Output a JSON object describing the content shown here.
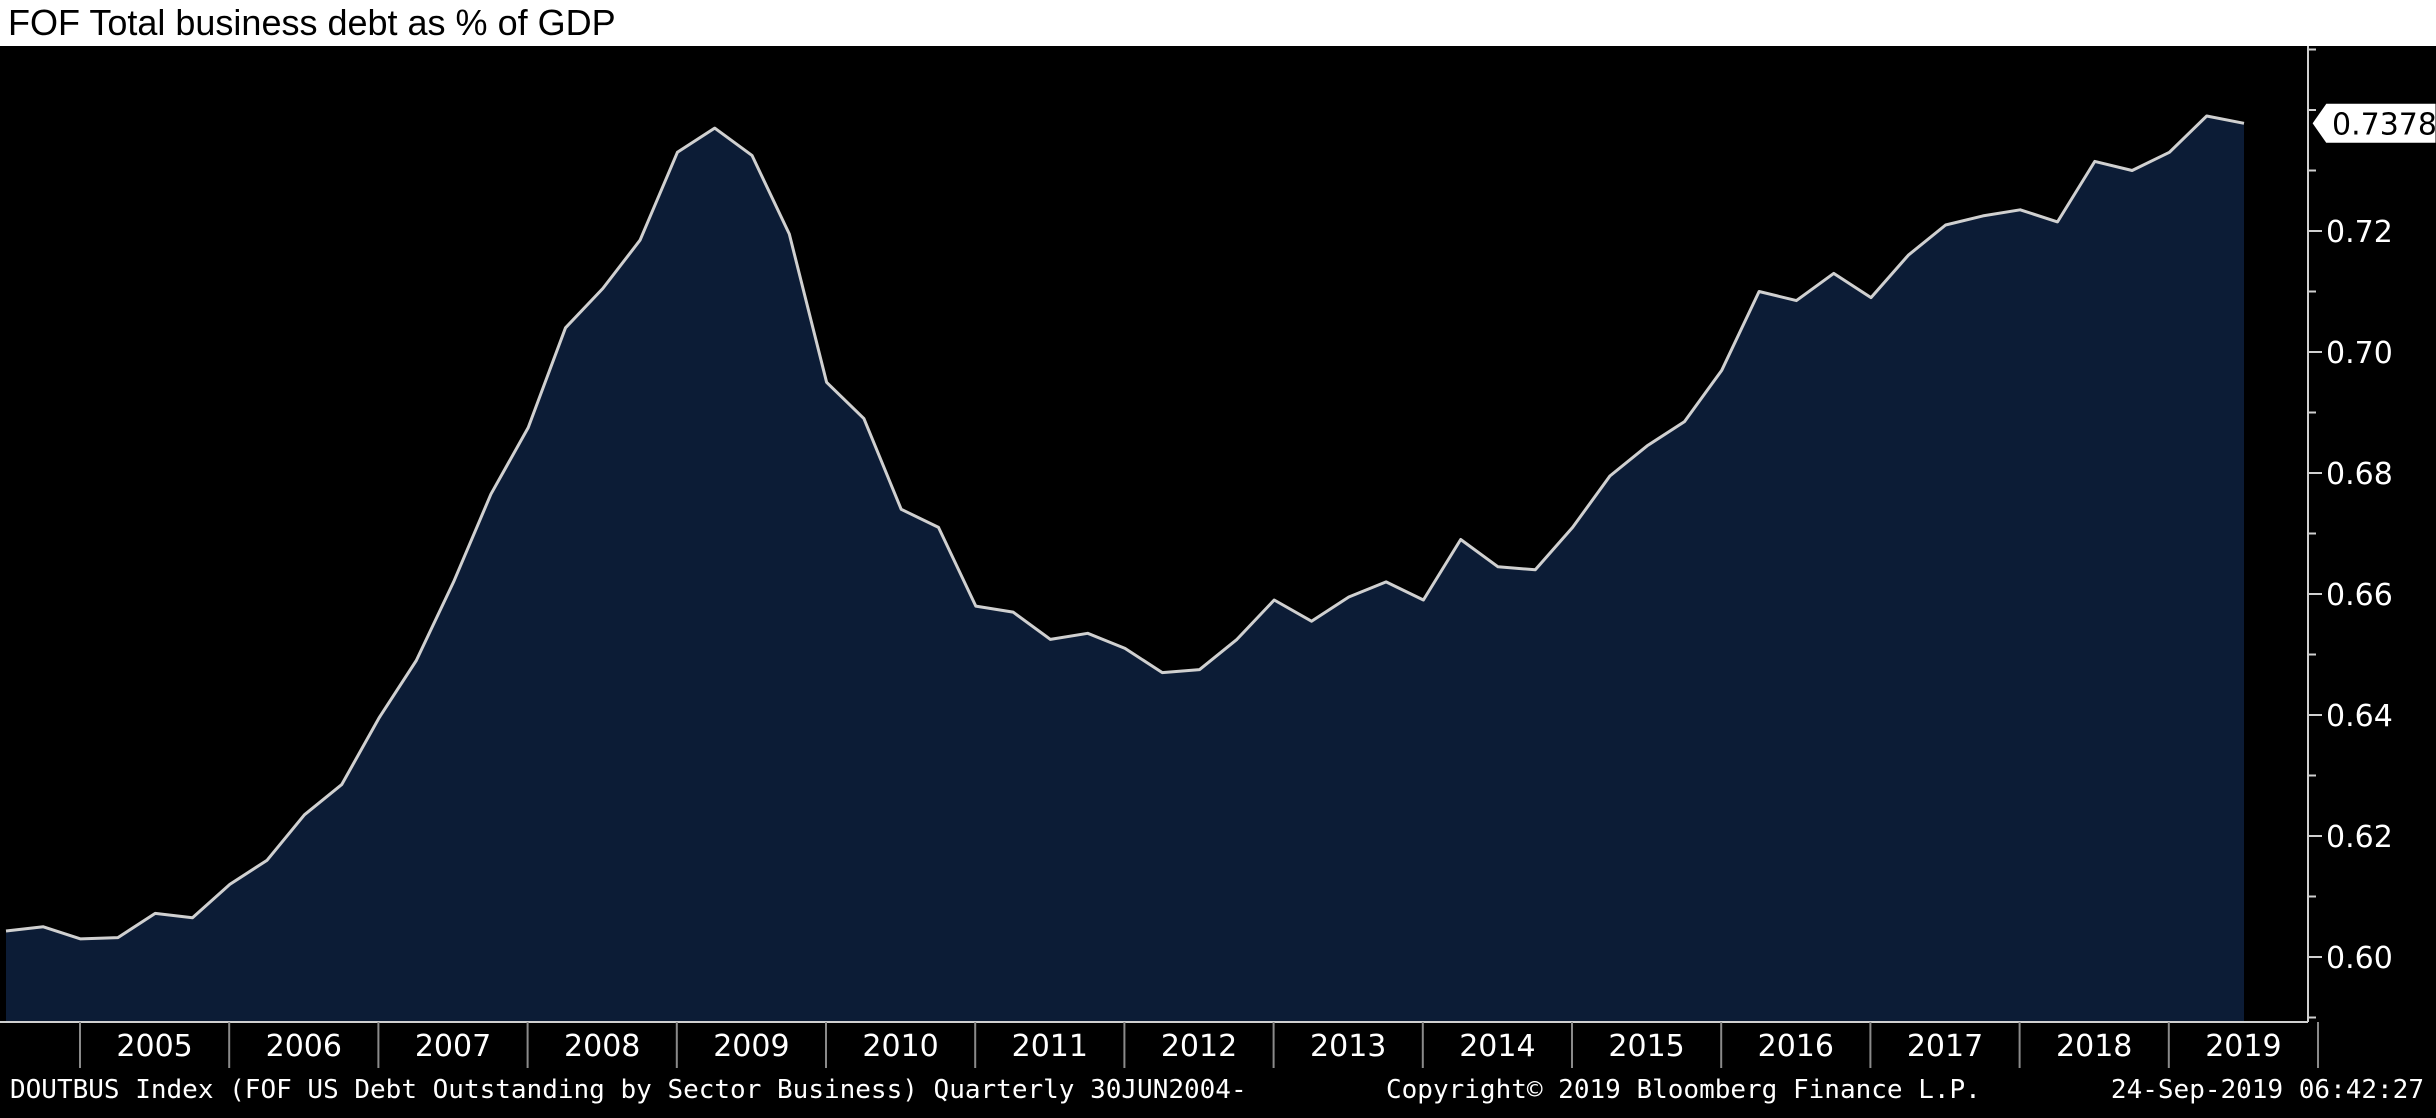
{
  "chart_data": {
    "type": "area",
    "title": "FOF Total business debt as % of GDP",
    "x_start": "2004 Q2",
    "frequency": "Quarterly",
    "values": [
      0.6043,
      0.605,
      0.603,
      0.6032,
      0.6072,
      0.6065,
      0.612,
      0.616,
      0.6235,
      0.6285,
      0.6395,
      0.649,
      0.662,
      0.6765,
      0.6875,
      0.704,
      0.7105,
      0.7185,
      0.733,
      0.737,
      0.7325,
      0.7195,
      0.695,
      0.689,
      0.674,
      0.671,
      0.658,
      0.657,
      0.6525,
      0.6535,
      0.651,
      0.647,
      0.6475,
      0.6525,
      0.659,
      0.6555,
      0.6595,
      0.662,
      0.659,
      0.669,
      0.6645,
      0.664,
      0.671,
      0.6795,
      0.6845,
      0.6885,
      0.697,
      0.71,
      0.7085,
      0.713,
      0.709,
      0.716,
      0.721,
      0.7225,
      0.7235,
      0.7215,
      0.7315,
      0.73,
      0.733,
      0.739,
      0.7378
    ],
    "last_value_label": "0.7378",
    "x_tick_labels": [
      "2005",
      "2006",
      "2007",
      "2008",
      "2009",
      "2010",
      "2011",
      "2012",
      "2013",
      "2014",
      "2015",
      "2016",
      "2017",
      "2018",
      "2019"
    ],
    "y_tick_labels": [
      "0.60",
      "0.62",
      "0.64",
      "0.66",
      "0.68",
      "0.70",
      "0.72"
    ],
    "y_ticks": [
      0.6,
      0.62,
      0.64,
      0.66,
      0.68,
      0.7,
      0.72
    ],
    "ylim": [
      0.59,
      0.75
    ],
    "xlabel": "",
    "ylabel": "",
    "grid": false,
    "colors": {
      "background": "#000000",
      "fill": "#0c1c36",
      "line": "#d0d0d0",
      "text": "#ffffff"
    }
  },
  "footer": {
    "series_description": "DOUTBUS Index (FOF US Debt Outstanding by Sector Business)  Quarterly 30JUN2004-",
    "copyright": "Copyright© 2019 Bloomberg Finance L.P.",
    "timestamp": "24-Sep-2019 06:42:27"
  }
}
